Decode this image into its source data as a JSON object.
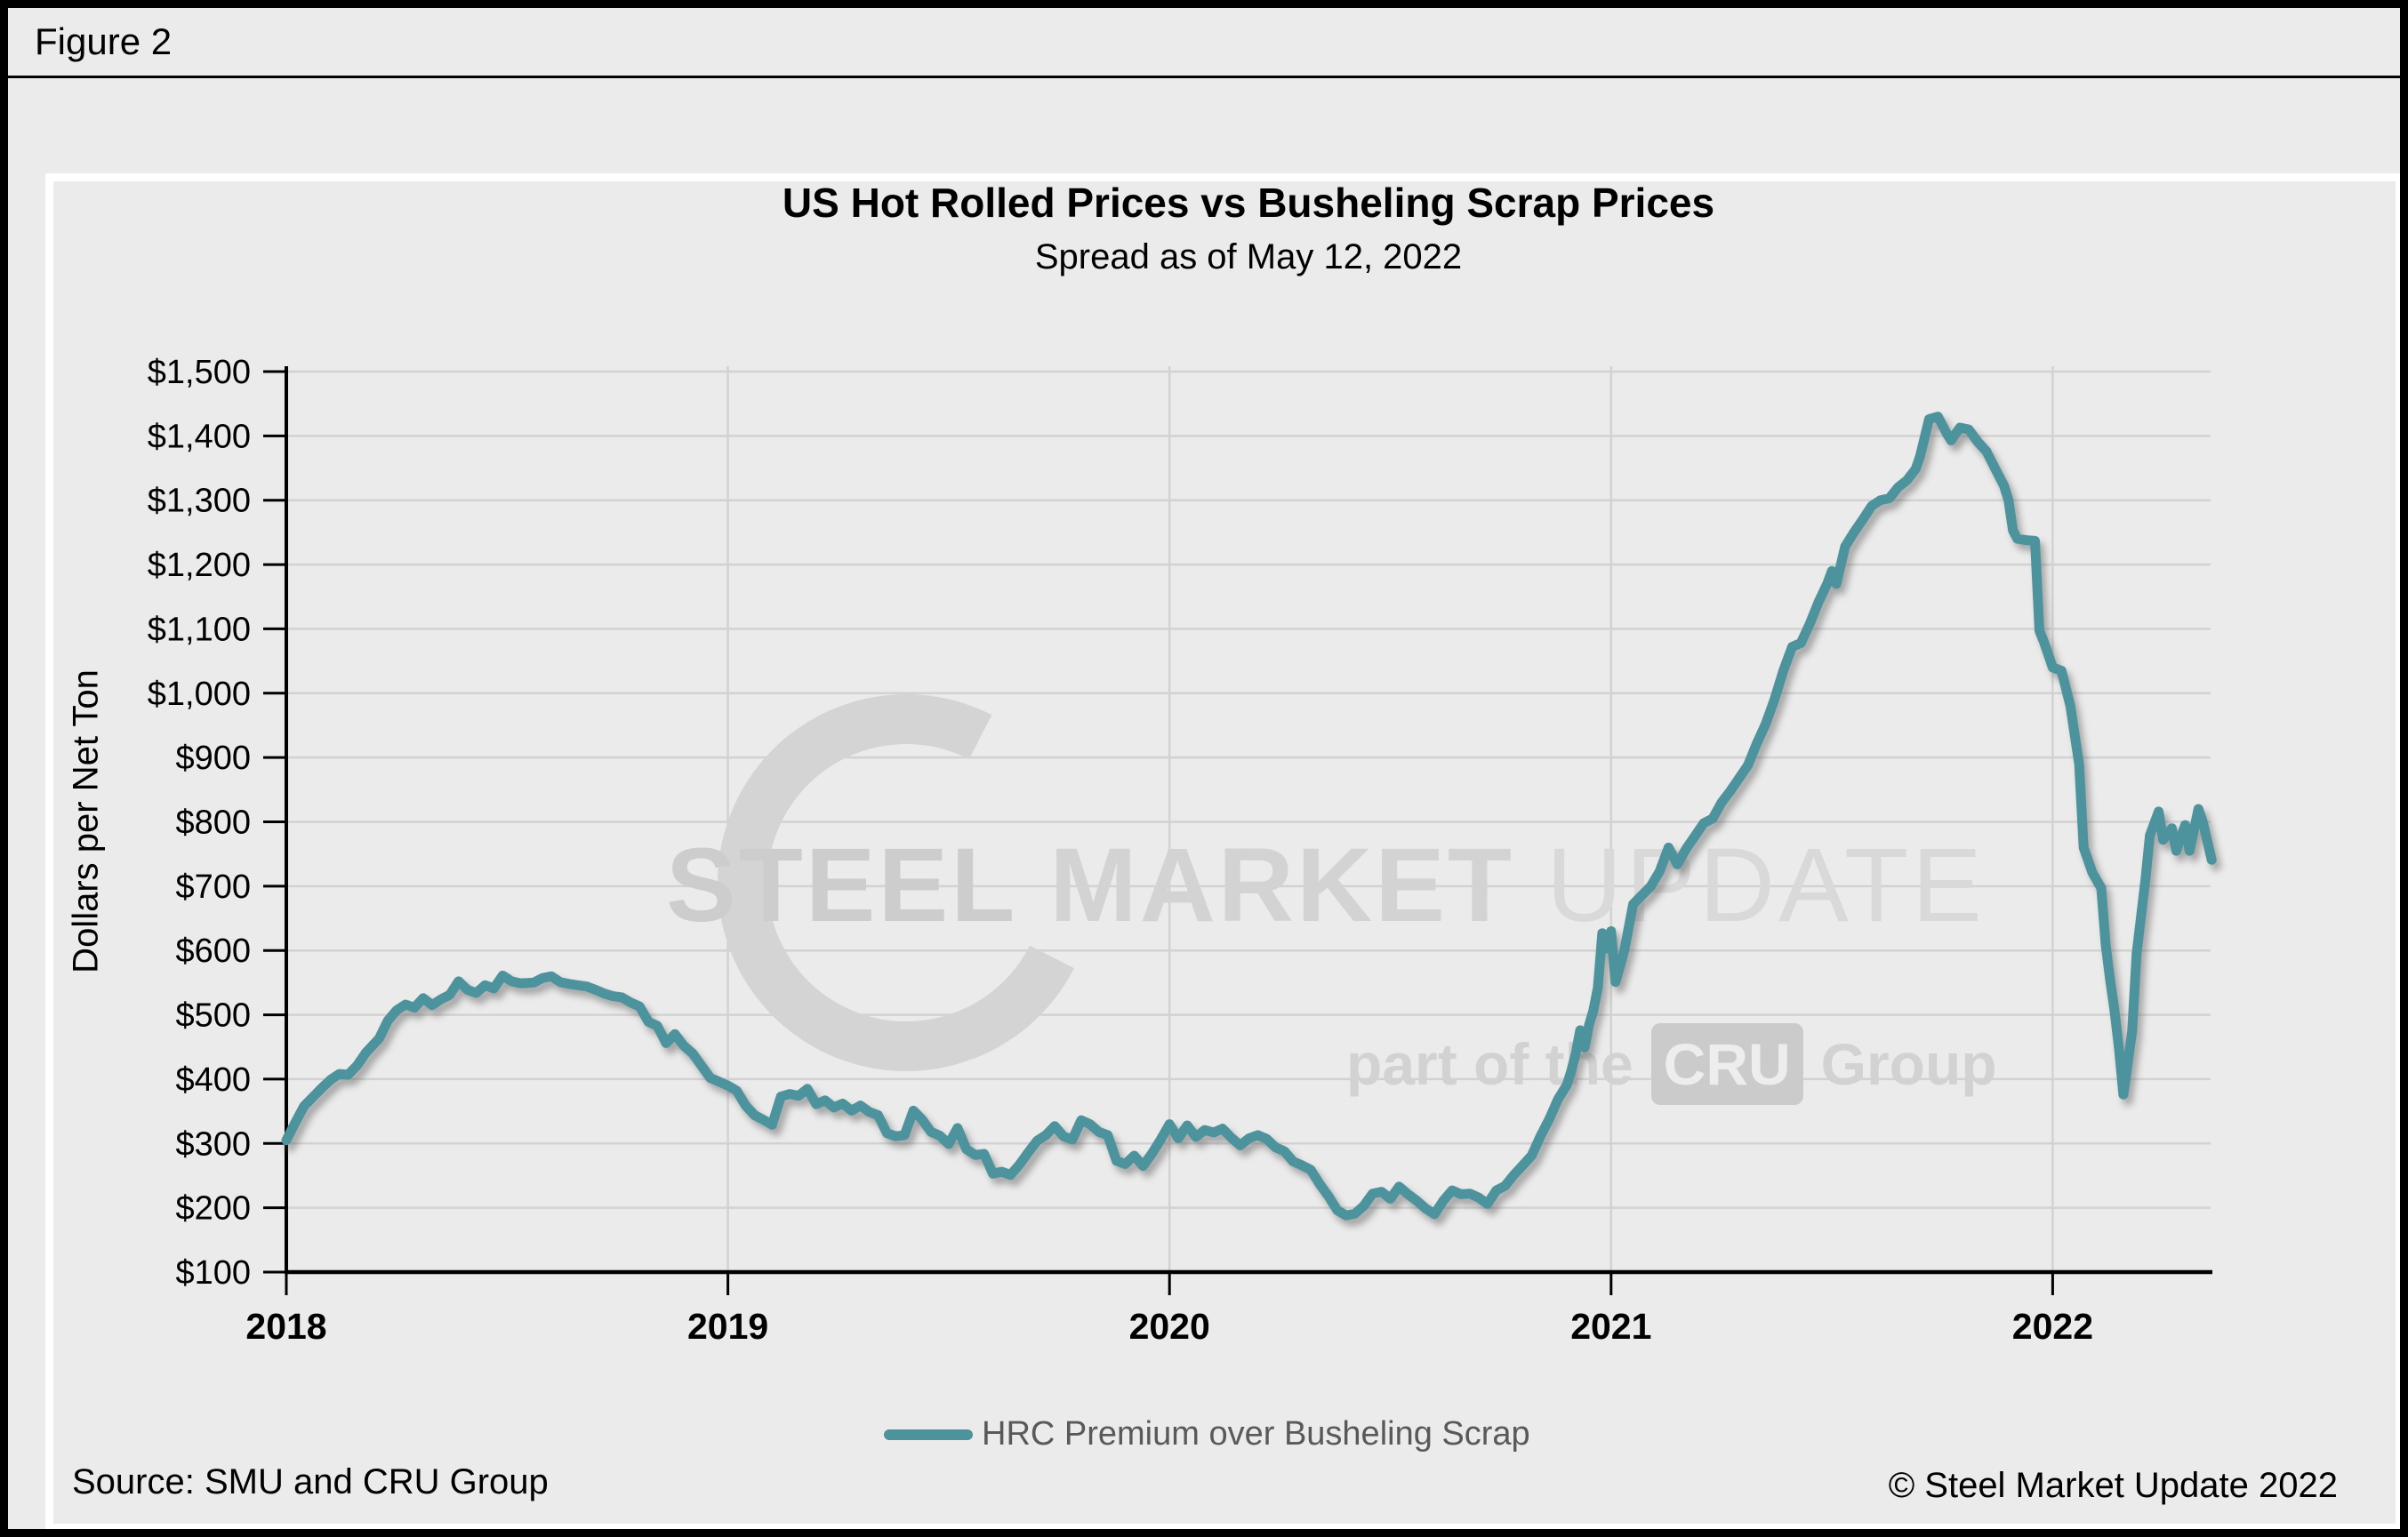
{
  "figure_label": "Figure 2",
  "header": {
    "title": "US Hot Rolled Prices vs Busheling Scrap Prices",
    "subtitle": "Spread as of May 12, 2022"
  },
  "footer": {
    "source": "Source: SMU and CRU Group",
    "copyright": "© Steel Market Update 2022"
  },
  "watermark": {
    "steel": "STEEL",
    "market": "MARKET",
    "update": "UPDATE",
    "part_of": "part of the",
    "cru": "CRU",
    "group": "Group"
  },
  "legend": {
    "label": "HRC Premium over Busheling Scrap"
  },
  "colors": {
    "background": "#EBEBEB",
    "gridline": "#D2D2D2",
    "axis": "#000000",
    "line": "#4D939E",
    "legend_text": "#595959",
    "watermark": "#D4D4D4"
  },
  "chart_data": {
    "type": "line",
    "title": "US Hot Rolled Prices vs Busheling Scrap Prices",
    "subtitle": "Spread as of May 12, 2022",
    "xlabel": "",
    "ylabel": "Dollars per Net Ton",
    "ylim": [
      100,
      1500
    ],
    "xlim": [
      2018,
      2022.37
    ],
    "grid": true,
    "legend_position": "bottom",
    "y_ticks": [
      100,
      200,
      300,
      400,
      500,
      600,
      700,
      800,
      900,
      1000,
      1100,
      1200,
      1300,
      1400,
      1500
    ],
    "y_tick_labels": [
      "$100",
      "$200",
      "$300",
      "$400",
      "$500",
      "$600",
      "$700",
      "$800",
      "$900",
      "$1,000",
      "$1,100",
      "$1,200",
      "$1,300",
      "$1,400",
      "$1,500"
    ],
    "x_ticks": [
      2018,
      2019,
      2020,
      2021,
      2022
    ],
    "x_tick_labels": [
      "2018",
      "2019",
      "2020",
      "2021",
      "2022"
    ],
    "series": [
      {
        "name": "HRC Premium over Busheling Scrap",
        "points": [
          [
            2018.0,
            305
          ],
          [
            2018.02,
            332
          ],
          [
            2018.04,
            358
          ],
          [
            2018.06,
            372
          ],
          [
            2018.08,
            386
          ],
          [
            2018.1,
            399
          ],
          [
            2018.12,
            408
          ],
          [
            2018.14,
            407
          ],
          [
            2018.16,
            421
          ],
          [
            2018.18,
            441
          ],
          [
            2018.21,
            463
          ],
          [
            2018.23,
            491
          ],
          [
            2018.25,
            507
          ],
          [
            2018.27,
            516
          ],
          [
            2018.29,
            511
          ],
          [
            2018.31,
            526
          ],
          [
            2018.33,
            515
          ],
          [
            2018.35,
            524
          ],
          [
            2018.37,
            531
          ],
          [
            2018.39,
            552
          ],
          [
            2018.41,
            539
          ],
          [
            2018.43,
            534
          ],
          [
            2018.45,
            546
          ],
          [
            2018.47,
            541
          ],
          [
            2018.49,
            561
          ],
          [
            2018.51,
            552
          ],
          [
            2018.53,
            549
          ],
          [
            2018.56,
            550
          ],
          [
            2018.58,
            557
          ],
          [
            2018.6,
            560
          ],
          [
            2018.62,
            551
          ],
          [
            2018.64,
            548
          ],
          [
            2018.66,
            546
          ],
          [
            2018.68,
            544
          ],
          [
            2018.7,
            539
          ],
          [
            2018.72,
            533
          ],
          [
            2018.74,
            529
          ],
          [
            2018.76,
            527
          ],
          [
            2018.78,
            519
          ],
          [
            2018.8,
            513
          ],
          [
            2018.82,
            489
          ],
          [
            2018.84,
            483
          ],
          [
            2018.86,
            456
          ],
          [
            2018.88,
            470
          ],
          [
            2018.9,
            452
          ],
          [
            2018.92,
            440
          ],
          [
            2018.94,
            421
          ],
          [
            2018.96,
            402
          ],
          [
            2018.98,
            396
          ],
          [
            2019.0,
            390
          ],
          [
            2019.02,
            382
          ],
          [
            2019.04,
            359
          ],
          [
            2019.06,
            344
          ],
          [
            2019.08,
            337
          ],
          [
            2019.1,
            329
          ],
          [
            2019.12,
            373
          ],
          [
            2019.14,
            377
          ],
          [
            2019.16,
            374
          ],
          [
            2019.18,
            385
          ],
          [
            2019.2,
            361
          ],
          [
            2019.22,
            367
          ],
          [
            2019.24,
            356
          ],
          [
            2019.26,
            362
          ],
          [
            2019.28,
            351
          ],
          [
            2019.3,
            359
          ],
          [
            2019.32,
            349
          ],
          [
            2019.34,
            344
          ],
          [
            2019.36,
            316
          ],
          [
            2019.38,
            311
          ],
          [
            2019.4,
            313
          ],
          [
            2019.42,
            351
          ],
          [
            2019.44,
            337
          ],
          [
            2019.46,
            318
          ],
          [
            2019.48,
            312
          ],
          [
            2019.5,
            299
          ],
          [
            2019.52,
            324
          ],
          [
            2019.54,
            291
          ],
          [
            2019.56,
            282
          ],
          [
            2019.58,
            284
          ],
          [
            2019.6,
            253
          ],
          [
            2019.62,
            256
          ],
          [
            2019.64,
            251
          ],
          [
            2019.66,
            267
          ],
          [
            2019.68,
            286
          ],
          [
            2019.7,
            304
          ],
          [
            2019.72,
            313
          ],
          [
            2019.74,
            327
          ],
          [
            2019.76,
            311
          ],
          [
            2019.78,
            306
          ],
          [
            2019.8,
            336
          ],
          [
            2019.82,
            330
          ],
          [
            2019.84,
            318
          ],
          [
            2019.86,
            313
          ],
          [
            2019.88,
            273
          ],
          [
            2019.9,
            268
          ],
          [
            2019.92,
            281
          ],
          [
            2019.94,
            265
          ],
          [
            2019.96,
            284
          ],
          [
            2019.98,
            306
          ],
          [
            2020.0,
            330
          ],
          [
            2020.02,
            308
          ],
          [
            2020.04,
            328
          ],
          [
            2020.06,
            310
          ],
          [
            2020.08,
            321
          ],
          [
            2020.1,
            317
          ],
          [
            2020.12,
            323
          ],
          [
            2020.14,
            309
          ],
          [
            2020.16,
            297
          ],
          [
            2020.18,
            308
          ],
          [
            2020.2,
            313
          ],
          [
            2020.22,
            307
          ],
          [
            2020.24,
            294
          ],
          [
            2020.26,
            288
          ],
          [
            2020.28,
            272
          ],
          [
            2020.3,
            266
          ],
          [
            2020.32,
            259
          ],
          [
            2020.34,
            237
          ],
          [
            2020.36,
            218
          ],
          [
            2020.38,
            196
          ],
          [
            2020.4,
            188
          ],
          [
            2020.42,
            191
          ],
          [
            2020.44,
            203
          ],
          [
            2020.46,
            222
          ],
          [
            2020.48,
            225
          ],
          [
            2020.5,
            214
          ],
          [
            2020.52,
            233
          ],
          [
            2020.54,
            221
          ],
          [
            2020.56,
            211
          ],
          [
            2020.58,
            199
          ],
          [
            2020.6,
            190
          ],
          [
            2020.62,
            211
          ],
          [
            2020.64,
            227
          ],
          [
            2020.66,
            221
          ],
          [
            2020.68,
            222
          ],
          [
            2020.7,
            216
          ],
          [
            2020.72,
            206
          ],
          [
            2020.74,
            227
          ],
          [
            2020.76,
            234
          ],
          [
            2020.78,
            251
          ],
          [
            2020.8,
            266
          ],
          [
            2020.82,
            281
          ],
          [
            2020.84,
            311
          ],
          [
            2020.86,
            338
          ],
          [
            2020.88,
            369
          ],
          [
            2020.9,
            391
          ],
          [
            2020.91,
            413
          ],
          [
            2020.92,
            440
          ],
          [
            2020.93,
            476
          ],
          [
            2020.94,
            449
          ],
          [
            2020.95,
            484
          ],
          [
            2020.96,
            507
          ],
          [
            2020.97,
            542
          ],
          [
            2020.98,
            627
          ],
          [
            2020.99,
            603
          ],
          [
            2021.0,
            630
          ],
          [
            2021.01,
            551
          ],
          [
            2021.03,
            600
          ],
          [
            2021.05,
            672
          ],
          [
            2021.07,
            686
          ],
          [
            2021.09,
            700
          ],
          [
            2021.11,
            723
          ],
          [
            2021.13,
            760
          ],
          [
            2021.15,
            734
          ],
          [
            2021.17,
            758
          ],
          [
            2021.19,
            778
          ],
          [
            2021.21,
            798
          ],
          [
            2021.23,
            805
          ],
          [
            2021.25,
            830
          ],
          [
            2021.27,
            848
          ],
          [
            2021.29,
            868
          ],
          [
            2021.31,
            888
          ],
          [
            2021.33,
            922
          ],
          [
            2021.35,
            952
          ],
          [
            2021.37,
            990
          ],
          [
            2021.39,
            1035
          ],
          [
            2021.41,
            1072
          ],
          [
            2021.43,
            1078
          ],
          [
            2021.45,
            1108
          ],
          [
            2021.47,
            1142
          ],
          [
            2021.49,
            1171
          ],
          [
            2021.5,
            1190
          ],
          [
            2021.51,
            1170
          ],
          [
            2021.53,
            1228
          ],
          [
            2021.55,
            1250
          ],
          [
            2021.57,
            1270
          ],
          [
            2021.59,
            1291
          ],
          [
            2021.61,
            1300
          ],
          [
            2021.63,
            1303
          ],
          [
            2021.65,
            1320
          ],
          [
            2021.67,
            1331
          ],
          [
            2021.69,
            1349
          ],
          [
            2021.7,
            1369
          ],
          [
            2021.72,
            1426
          ],
          [
            2021.74,
            1430
          ],
          [
            2021.76,
            1404
          ],
          [
            2021.77,
            1393
          ],
          [
            2021.79,
            1413
          ],
          [
            2021.81,
            1410
          ],
          [
            2021.83,
            1391
          ],
          [
            2021.85,
            1376
          ],
          [
            2021.87,
            1349
          ],
          [
            2021.89,
            1322
          ],
          [
            2021.9,
            1300
          ],
          [
            2021.91,
            1253
          ],
          [
            2021.92,
            1240
          ],
          [
            2021.94,
            1238
          ],
          [
            2021.96,
            1237
          ],
          [
            2021.97,
            1097
          ],
          [
            2021.98,
            1080
          ],
          [
            2022.0,
            1040
          ],
          [
            2022.02,
            1035
          ],
          [
            2022.04,
            980
          ],
          [
            2022.06,
            889
          ],
          [
            2022.07,
            760
          ],
          [
            2022.09,
            721
          ],
          [
            2022.11,
            697
          ],
          [
            2022.12,
            609
          ],
          [
            2022.13,
            554
          ],
          [
            2022.14,
            507
          ],
          [
            2022.15,
            448
          ],
          [
            2022.16,
            376
          ],
          [
            2022.18,
            475
          ],
          [
            2022.19,
            595
          ],
          [
            2022.21,
            710
          ],
          [
            2022.22,
            779
          ],
          [
            2022.24,
            816
          ],
          [
            2022.25,
            772
          ],
          [
            2022.27,
            790
          ],
          [
            2022.28,
            755
          ],
          [
            2022.3,
            795
          ],
          [
            2022.31,
            755
          ],
          [
            2022.33,
            820
          ],
          [
            2022.34,
            800
          ],
          [
            2022.36,
            741
          ]
        ]
      }
    ]
  }
}
